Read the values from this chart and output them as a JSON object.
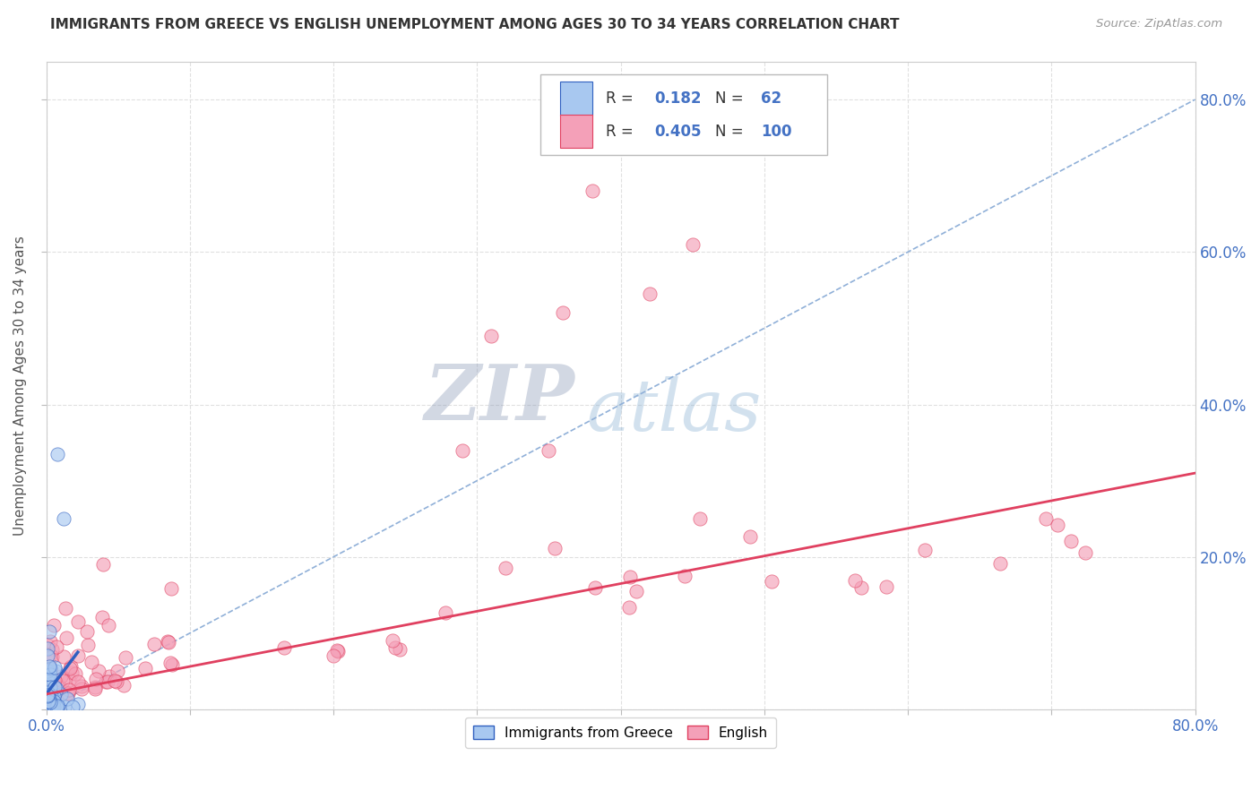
{
  "title": "IMMIGRANTS FROM GREECE VS ENGLISH UNEMPLOYMENT AMONG AGES 30 TO 34 YEARS CORRELATION CHART",
  "source": "Source: ZipAtlas.com",
  "ylabel": "Unemployment Among Ages 30 to 34 years",
  "xlim": [
    0.0,
    0.8
  ],
  "ylim": [
    0.0,
    0.85
  ],
  "color_greece": "#a8c8f0",
  "color_english": "#f4a0b8",
  "trendline_greece_color": "#3060c0",
  "trendline_english_color": "#e04060",
  "diagonal_color": "#90b0d8",
  "background_color": "#ffffff",
  "grid_color": "#e0e0e0",
  "axis_label_color": "#4472c4",
  "legend_r1_color": "#4472c4",
  "legend_r2_color": "#4472c4",
  "watermark_zip_color": "#8090b0",
  "watermark_atlas_color": "#80aad0"
}
